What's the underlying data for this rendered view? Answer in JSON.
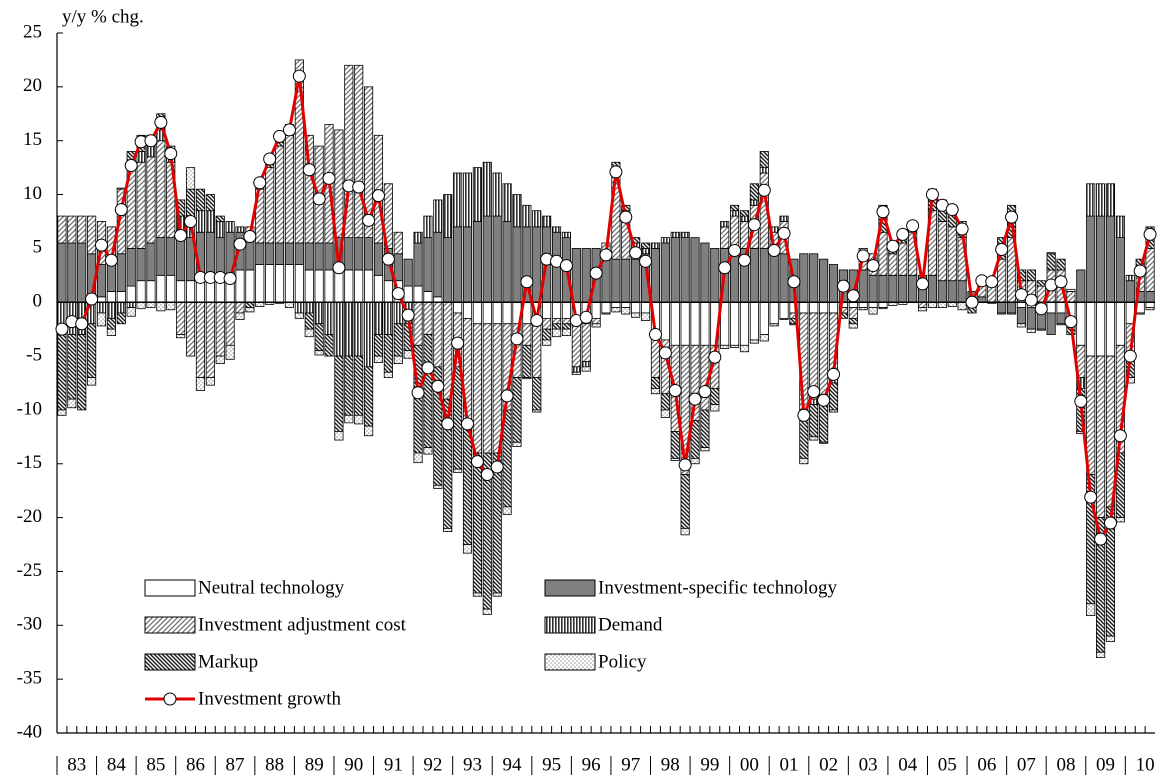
{
  "chart_data": {
    "type": "bar",
    "stacked": true,
    "ylabel": "y/y % chg.",
    "ylim": [
      -40,
      25
    ],
    "yticks": [
      -40,
      -35,
      -30,
      -25,
      -20,
      -15,
      -10,
      -5,
      0,
      5,
      10,
      15,
      20,
      25
    ],
    "legend": "lower left",
    "categories": [
      null,
      "83",
      null,
      null,
      null,
      "84",
      null,
      null,
      null,
      "85",
      null,
      null,
      null,
      "86",
      null,
      null,
      null,
      "87",
      null,
      null,
      null,
      "88",
      null,
      null,
      null,
      "89",
      null,
      null,
      null,
      "90",
      null,
      null,
      null,
      "91",
      null,
      null,
      null,
      "92",
      null,
      null,
      null,
      "93",
      null,
      null,
      null,
      "94",
      null,
      null,
      null,
      "95",
      null,
      null,
      null,
      "96",
      null,
      null,
      null,
      "97",
      null,
      null,
      null,
      "98",
      null,
      null,
      null,
      "99",
      null,
      null,
      null,
      "00",
      null,
      null,
      null,
      "01",
      null,
      null,
      null,
      "02",
      null,
      null,
      null,
      "03",
      null,
      null,
      null,
      "04",
      null,
      null,
      null,
      "05",
      null,
      null,
      null,
      "06",
      null,
      null,
      null,
      "07",
      null,
      null,
      null,
      "08",
      null,
      null,
      null,
      "09",
      null,
      null,
      null,
      "10",
      null
    ],
    "series": [
      {
        "name": "Neutral technology",
        "type": "bar",
        "color": "#ffffff",
        "pattern": "solid",
        "values": [
          0,
          0,
          0,
          0.5,
          0.5,
          1,
          1,
          1.5,
          2,
          2,
          2.5,
          2.5,
          2,
          2,
          2,
          2,
          2,
          2.5,
          3,
          3,
          3.5,
          3.5,
          3.5,
          3.5,
          3.5,
          3,
          3,
          3,
          3,
          3,
          3,
          3,
          2.5,
          2,
          2,
          1.5,
          1.5,
          1,
          0.5,
          0,
          -1,
          -1.5,
          -2,
          -2,
          -2,
          -2,
          -2,
          -2,
          -2,
          -1.5,
          -1.5,
          -1.5,
          -2,
          -2,
          -1.5,
          -1,
          -0.5,
          -0.5,
          -1,
          -1,
          -3,
          -3.5,
          -4,
          -4,
          -4,
          -4,
          -4,
          -4,
          -4,
          -4,
          -3.5,
          -3,
          -2,
          -1.5,
          -1,
          -1,
          -1,
          -1,
          -1,
          -0.5,
          -0.5,
          -0.5,
          -0.5,
          -0.5,
          0,
          0,
          0,
          0,
          0,
          0,
          0,
          0,
          0,
          0,
          0,
          0,
          0,
          -0.5,
          -0.5,
          -0.5,
          -1,
          -1,
          -2,
          -4,
          -5,
          -5,
          -5,
          -4,
          -2,
          -1,
          -0.5
        ]
      },
      {
        "name": "Investment-specific technology",
        "type": "bar",
        "color": "#808080",
        "pattern": "solid",
        "values": [
          5.5,
          5.5,
          5.5,
          4,
          3,
          3,
          3.5,
          3.5,
          3,
          3.5,
          3.5,
          3.5,
          4,
          4,
          4.5,
          4.5,
          4,
          4,
          3.5,
          3,
          2,
          2,
          2,
          2,
          2,
          2.5,
          2.5,
          2.5,
          3,
          3,
          3,
          3,
          3,
          3,
          2.5,
          2.5,
          4,
          5,
          6,
          6,
          7,
          7,
          7.5,
          8,
          8,
          7.5,
          7,
          7,
          7,
          7,
          6.5,
          6,
          5,
          5,
          5,
          4.5,
          4,
          4,
          4,
          4.5,
          5,
          5.5,
          6,
          6,
          6,
          5.5,
          5,
          5,
          5,
          5,
          5,
          5,
          4.5,
          4.5,
          4,
          4.5,
          4.5,
          4,
          3.5,
          3,
          3,
          3,
          2.5,
          2.5,
          2.5,
          2.5,
          2.5,
          2.5,
          2.5,
          2,
          2,
          2,
          1,
          0.5,
          0,
          -1,
          -1,
          -1.5,
          -2,
          -2,
          -2,
          -1,
          0,
          3,
          8,
          8,
          8,
          6,
          2,
          1,
          1
        ]
      },
      {
        "name": "Investment adjustment cost",
        "type": "bar",
        "color": "#a0a0a0",
        "pattern": "hatch-forward",
        "values": [
          2.5,
          2.5,
          2.5,
          3.5,
          4,
          3,
          6,
          8,
          8,
          8,
          9,
          7,
          -3,
          -5,
          -7,
          -7,
          -5,
          -4,
          -1,
          1,
          5,
          7,
          9,
          10,
          17,
          10,
          9,
          11,
          10,
          16,
          16,
          14,
          10,
          6,
          2,
          0,
          -4,
          -3,
          -6,
          -9,
          -5,
          -10,
          -12,
          -12,
          -12,
          -8,
          -5,
          -2,
          -5,
          -1,
          -0.5,
          -0.5,
          -4,
          -3.5,
          -0.5,
          1,
          8,
          4,
          1,
          0,
          -4,
          -5,
          -8,
          -12,
          -7,
          -6,
          -4,
          2,
          3,
          2.5,
          4,
          7,
          2,
          3,
          -0.5,
          -9,
          -8,
          -8,
          -6,
          -0.5,
          -1,
          2,
          2,
          4,
          2,
          3,
          4,
          -0.5,
          6,
          5.5,
          5,
          4,
          -0.5,
          1.5,
          2,
          4,
          6,
          2,
          2,
          1.5,
          3,
          3,
          1,
          -3,
          -11,
          -15,
          -14,
          -10,
          -3,
          2,
          4
        ]
      },
      {
        "name": "Demand",
        "type": "bar",
        "color": "#303030",
        "pattern": "vertical",
        "values": [
          -3,
          -3,
          -3,
          -2,
          -1,
          -1.5,
          -1,
          -0.5,
          1,
          1,
          1,
          0.5,
          2,
          2,
          2,
          2,
          1.5,
          1,
          0.5,
          0,
          0,
          0,
          0,
          0,
          -1,
          -1,
          -2,
          -3,
          -5,
          -5,
          -5,
          -6,
          -3,
          -3,
          -2,
          -2,
          1,
          2,
          3,
          4,
          5,
          5,
          5,
          5,
          4,
          3.5,
          3,
          2,
          1.5,
          1,
          0.5,
          0.5,
          -0.5,
          -0.5,
          0,
          0,
          0.5,
          0.5,
          0.5,
          0.5,
          0.5,
          0.5,
          0.5,
          0.5,
          0,
          0,
          0,
          0.5,
          0.5,
          0.5,
          0.5,
          0.5,
          0.5,
          0.5,
          0,
          -0.5,
          -0.5,
          -0.5,
          -0.5,
          0,
          0,
          0,
          0,
          0,
          0,
          0,
          0,
          0,
          0,
          0,
          0,
          0,
          0,
          0,
          0,
          0,
          0,
          0,
          0,
          0,
          0,
          0,
          0,
          -1,
          3,
          3,
          3,
          2,
          0.5,
          0,
          0
        ]
      },
      {
        "name": "Markup",
        "type": "bar",
        "color": "#202020",
        "pattern": "hatch-back",
        "values": [
          -7,
          -6,
          -7,
          -5,
          0,
          -1,
          -1,
          1,
          1.5,
          1,
          1.5,
          1,
          1.5,
          2.5,
          2,
          1.5,
          0.5,
          0,
          0,
          -0.5,
          1,
          1,
          1,
          1,
          0,
          -1.5,
          -2.5,
          -2,
          -7,
          -5.5,
          -5.5,
          -5.5,
          -2,
          -3.5,
          -3,
          -2.5,
          -10,
          -10.5,
          -11,
          -12,
          -9.5,
          -11,
          -13,
          -14.5,
          -13,
          -9,
          -6,
          -3,
          -3,
          -1,
          -0.5,
          -0.5,
          0,
          0,
          0,
          0,
          0.5,
          0.5,
          0.5,
          0.5,
          -1,
          -1.5,
          -2.5,
          -5,
          -3.5,
          -3.5,
          -1.5,
          0,
          0.5,
          0.5,
          1.5,
          1.5,
          0,
          0,
          -0.5,
          -4,
          -3,
          -3.5,
          -2.5,
          -0.5,
          -0.5,
          0,
          0,
          2.5,
          1,
          1,
          0.5,
          0,
          2,
          2,
          2,
          1.5,
          -0.5,
          0,
          0,
          2,
          3,
          1,
          1,
          0.5,
          1.5,
          1,
          -1,
          -4,
          -12,
          -12.5,
          -12,
          -6,
          -2,
          1,
          2
        ]
      },
      {
        "name": "Policy",
        "type": "bar",
        "color": "#606060",
        "pattern": "dots",
        "values": [
          -0.5,
          -0.8,
          0,
          -0.7,
          -1.2,
          -0.6,
          0.1,
          -0.8,
          -0.6,
          -0.5,
          -0.8,
          -0.7,
          -0.3,
          2,
          -1.2,
          -0.7,
          -0.7,
          -1.3,
          -0.6,
          -0.4,
          -0.4,
          -0.2,
          -0.1,
          -0.5,
          -0.5,
          -0.7,
          -0.4,
          0,
          -0.8,
          -0.7,
          -0.8,
          -0.9,
          -0.6,
          -0.5,
          -0.7,
          -0.7,
          -0.9,
          -0.6,
          -0.3,
          -0.3,
          -0.3,
          -0.8,
          -0.3,
          -0.5,
          -0.3,
          -0.7,
          -0.4,
          -0.1,
          -0.2,
          -0.5,
          -0.7,
          -0.6,
          -0.2,
          -0.4,
          -0.3,
          -0.1,
          -0.4,
          -0.6,
          -0.4,
          -0.7,
          -0.5,
          -0.7,
          -0.2,
          -0.6,
          -0.5,
          -0.3,
          -0.6,
          -0.3,
          -0.2,
          -0.6,
          -0.3,
          -0.6,
          -0.2,
          -0.1,
          -0.1,
          -0.5,
          -0.3,
          -0.1,
          -0.2,
          0,
          -0.4,
          -0.2,
          -0.6,
          -0.1,
          -0.3,
          -0.2,
          0.1,
          -0.3,
          -0.5,
          -0.5,
          -0.4,
          -0.7,
          0,
          0,
          -0.1,
          -0.1,
          -0.1,
          -0.3,
          -0.3,
          -0.1,
          0.1,
          -0.1,
          0.2,
          -0.2,
          -1.1,
          -0.5,
          -0.5,
          -0.4,
          -0.5,
          -0.1,
          -0.2
        ]
      },
      {
        "name": "Investment growth",
        "type": "line",
        "color": "#e00000",
        "marker_color": "#ffffff",
        "values": [
          -2.5,
          -1.8,
          -2,
          0.3,
          5.3,
          3.9,
          8.6,
          12.7,
          14.9,
          15,
          16.7,
          13.8,
          6.2,
          7.5,
          2.3,
          2.3,
          2.3,
          2.2,
          5.4,
          6.1,
          11.1,
          13.3,
          15.4,
          16,
          21,
          12.3,
          9.6,
          11.5,
          3.2,
          10.8,
          10.7,
          7.6,
          9.9,
          4,
          0.8,
          -1.2,
          -8.4,
          -6.1,
          -7.8,
          -11.3,
          -3.8,
          -11.3,
          -14.8,
          -16,
          -15.3,
          -8.7,
          -3.4,
          1.9,
          -1.7,
          4,
          3.8,
          3.4,
          -1.7,
          -1.4,
          2.7,
          4.4,
          12.1,
          7.9,
          4.6,
          3.8,
          -3,
          -4.7,
          -8.2,
          -15.1,
          -9,
          -8.3,
          -5.1,
          3.2,
          4.8,
          3.9,
          7.2,
          10.4,
          4.8,
          6.4,
          1.9,
          -10.5,
          -8.3,
          -9.1,
          -6.7,
          1.5,
          0.6,
          4.3,
          3.4,
          8.4,
          5.2,
          6.3,
          7.1,
          1.7,
          10,
          9,
          8.6,
          6.8,
          0,
          2,
          1.9,
          4.9,
          7.9,
          0.7,
          0.2,
          -0.6,
          1.6,
          1.9,
          -1.8,
          -9.2,
          -18.1,
          -22,
          -20.5,
          -12.4,
          -5,
          2.9,
          6.3
        ]
      }
    ]
  }
}
